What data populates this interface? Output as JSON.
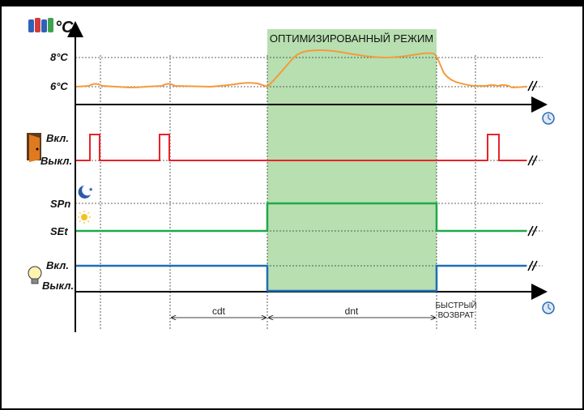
{
  "temperature": {
    "unit": "°C",
    "high": "8°C",
    "low": "6°C"
  },
  "mode_label": "ОПТИМИЗИРОВАННЫЙ РЕЖИМ",
  "door": {
    "on": "Вкл.",
    "off": "Выкл."
  },
  "setpoint": {
    "night": "SPn",
    "day": "SEt"
  },
  "light": {
    "on": "Вкл.",
    "off": "Выкл."
  },
  "intervals": {
    "cdt": "cdt",
    "dnt": "dnt",
    "fast_return_1": "БЫСТРЫЙ",
    "fast_return_2": "ВОЗВРАТ"
  },
  "colors": {
    "temperature": "#f59a3c",
    "door": "#e8232a",
    "setpoint": "#1fa84a",
    "light": "#1f6fb5",
    "mode_bg": "#b7dfb0"
  }
}
